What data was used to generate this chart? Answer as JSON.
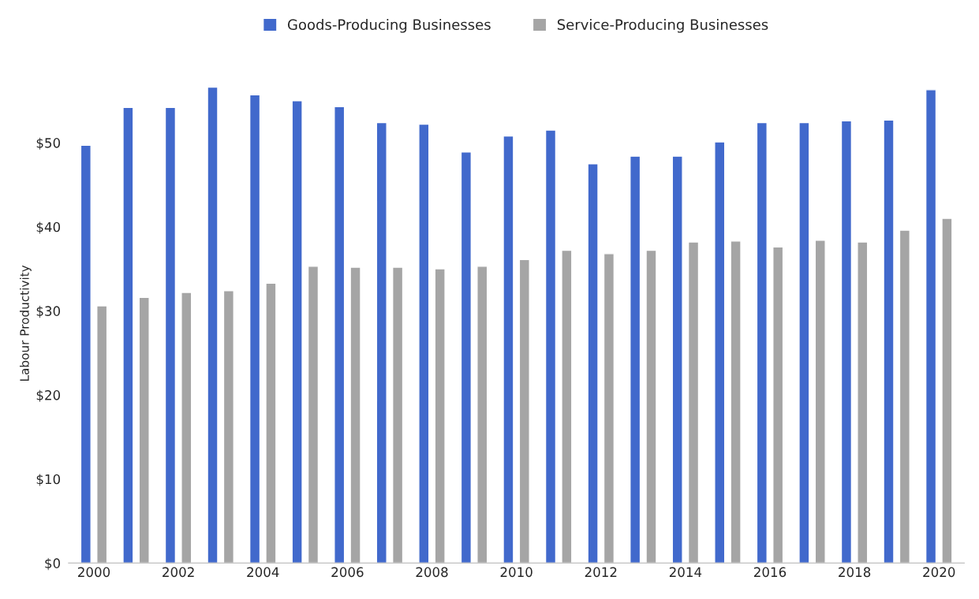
{
  "chart_data": {
    "type": "bar",
    "ylabel": "Labour Productivity",
    "categories": [
      "2000",
      null,
      "2002",
      null,
      "2004",
      null,
      "2006",
      null,
      "2008",
      null,
      "2010",
      null,
      "2012",
      null,
      "2014",
      null,
      "2016",
      null,
      "2018",
      null,
      "2020"
    ],
    "series": [
      {
        "name": "Goods-Producing Businesses",
        "color": "#4169cc",
        "values": [
          49.7,
          54.2,
          54.2,
          56.6,
          55.7,
          55.0,
          54.3,
          52.4,
          52.2,
          48.9,
          50.8,
          51.5,
          47.5,
          48.4,
          48.4,
          50.1,
          52.4,
          52.4,
          52.6,
          52.7,
          56.3
        ]
      },
      {
        "name": "Service-Producing Businesses",
        "color": "#a5a5a5",
        "values": [
          30.6,
          31.6,
          32.2,
          32.4,
          33.3,
          35.3,
          35.2,
          35.2,
          35.0,
          35.3,
          36.1,
          37.2,
          36.8,
          37.2,
          38.2,
          38.3,
          37.6,
          38.4,
          38.2,
          39.6,
          41.0
        ]
      }
    ],
    "ylim": [
      0,
      57
    ],
    "yticks": [
      {
        "value": 0,
        "label": "$0"
      },
      {
        "value": 10,
        "label": "$10"
      },
      {
        "value": 20,
        "label": "$20"
      },
      {
        "value": 30,
        "label": "$30"
      },
      {
        "value": 40,
        "label": "$40"
      },
      {
        "value": 50,
        "label": "$50"
      }
    ],
    "grid": false,
    "legend": "top"
  }
}
